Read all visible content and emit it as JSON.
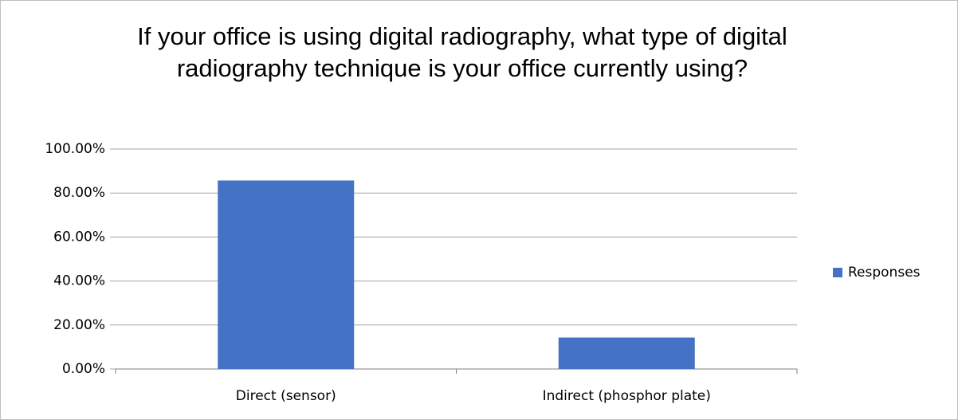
{
  "chart_data": {
    "type": "bar",
    "title": "If your office is using digital radiography, what type of digital radiography technique is your office currently using?",
    "categories": [
      "Direct (sensor)",
      "Indirect (phosphor plate)"
    ],
    "series": [
      {
        "name": "Responses",
        "color": "#4472c4",
        "values": [
          85.7,
          14.3
        ]
      }
    ],
    "ylim": [
      0,
      100
    ],
    "yticks": [
      {
        "value": 0,
        "label": "0.00%"
      },
      {
        "value": 20,
        "label": "20.00%"
      },
      {
        "value": 40,
        "label": "40.00%"
      },
      {
        "value": 60,
        "label": "60.00%"
      },
      {
        "value": 80,
        "label": "80.00%"
      },
      {
        "value": 100,
        "label": "100.00%"
      }
    ],
    "grid": true,
    "legend": "right"
  }
}
